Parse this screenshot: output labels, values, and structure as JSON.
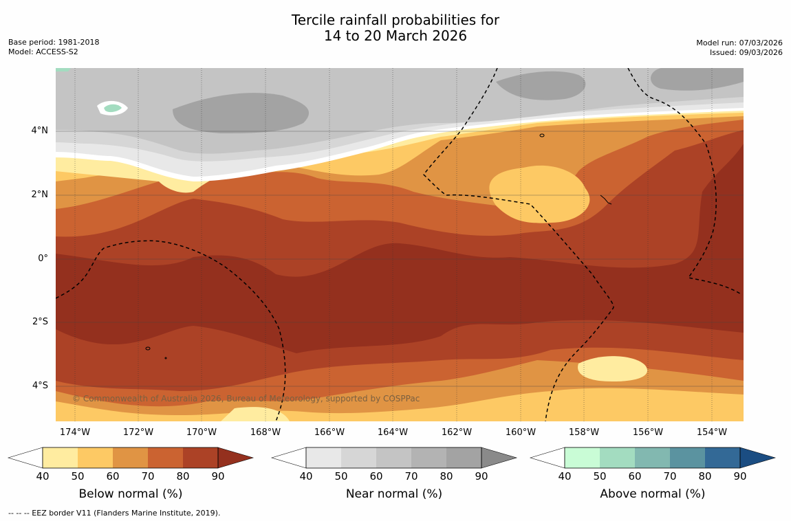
{
  "title": {
    "line1": "Tercile rainfall probabilities for",
    "line2": "14 to 20 March 2026"
  },
  "meta": {
    "base_period": "Base period: 1981-2018",
    "model": "Model: ACCESS-S2",
    "model_run": "Model run: 07/03/2026",
    "issued": "Issued: 09/03/2026"
  },
  "axes": {
    "lat_labels": [
      "4°N",
      "2°N",
      "0°",
      "2°S",
      "4°S"
    ],
    "lon_labels": [
      "174°W",
      "172°W",
      "170°W",
      "168°W",
      "166°W",
      "164°W",
      "162°W",
      "160°W",
      "158°W",
      "156°W",
      "154°W"
    ]
  },
  "copyright": "© Commonwealth of Australia 2026, Bureau of Meteorology, supported by COSPPac",
  "legend": {
    "ticks": [
      "40",
      "50",
      "60",
      "70",
      "80",
      "90"
    ],
    "below": {
      "title": "Below normal (%)",
      "colors": [
        "#ffffff",
        "#ffeca0",
        "#fdc964",
        "#e09444",
        "#cb6331",
        "#ac4226",
        "#94301e"
      ]
    },
    "near": {
      "title": "Near normal (%)",
      "colors": [
        "#ffffff",
        "#e8e8e8",
        "#d6d6d6",
        "#c4c4c4",
        "#b3b3b3",
        "#a3a3a3",
        "#8a8a8a"
      ]
    },
    "above": {
      "title": "Above normal (%)",
      "colors": [
        "#ffffff",
        "#c9fcd6",
        "#a3dcc0",
        "#82b8b0",
        "#5b93a0",
        "#336996",
        "#1b4d82"
      ]
    }
  },
  "footnote": "--  --  -- EEZ border V11 (Flanders Marine Institute, 2019)."
}
